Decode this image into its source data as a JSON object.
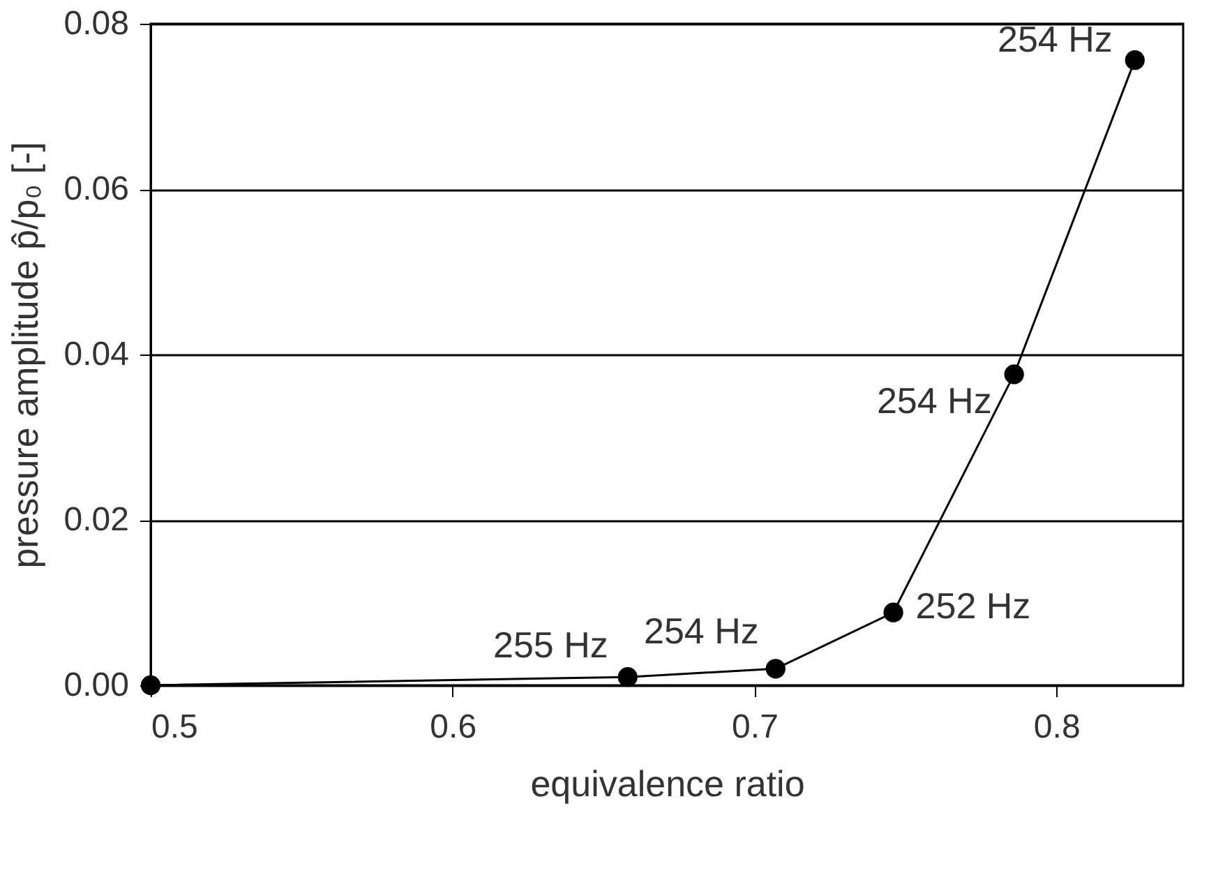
{
  "chart_data": {
    "type": "line",
    "xlabel": "equivalence ratio",
    "ylabel": "pressure amplitude p̂/p₀ [-]",
    "x": [
      0.5,
      0.658,
      0.707,
      0.746,
      0.786,
      0.826
    ],
    "series": [
      {
        "color": "#000000",
        "values": [
          0.0,
          0.001,
          0.002,
          0.0088,
          0.0376,
          0.0756
        ]
      }
    ],
    "xlim": [
      0.5,
      0.842
    ],
    "xticks": [
      0.5,
      0.6,
      0.7,
      0.8
    ],
    "ylim": [
      0,
      0.08
    ],
    "yticks": [
      {
        "value": 0,
        "label": "0.00"
      },
      0.02,
      0.04,
      0.06,
      0.08
    ],
    "grid": "y",
    "marker": "circle",
    "line_style": "solid",
    "annotations": [
      {
        "text": "255 Hz",
        "x": 0.658,
        "y": 0.001
      },
      {
        "text": "254 Hz",
        "x": 0.707,
        "y": 0.002
      },
      {
        "text": "252 Hz",
        "x": 0.746,
        "y": 0.0088
      },
      {
        "text": "254 Hz",
        "x": 0.786,
        "y": 0.0376
      },
      {
        "text": "254 Hz",
        "x": 0.826,
        "y": 0.0756
      }
    ]
  }
}
